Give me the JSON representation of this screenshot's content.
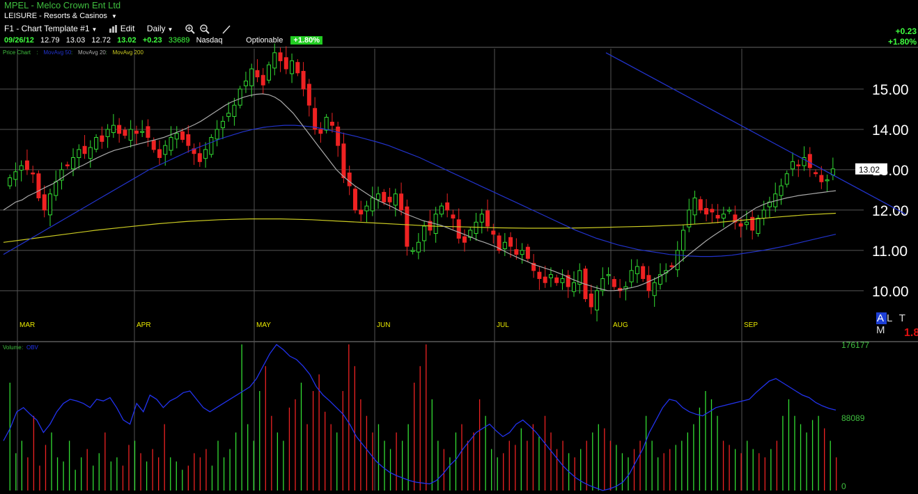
{
  "header": {
    "symbol": "MPEL",
    "company": "Melco Crown Ent Ltd",
    "sector": "LEISURE - Resorts & Casinos",
    "template_label": "F1 - Chart Template #1",
    "edit_label": "Edit",
    "period_label": "Daily",
    "quote": {
      "date": "09/26/12",
      "open": "12.79",
      "high": "13.03",
      "low": "12.72",
      "close": "13.02",
      "change": "+0.23",
      "volume": "33689",
      "exchange": "Nasdaq",
      "optionable": "Optionable",
      "pct": "+1.80%"
    },
    "right_change": "+0.23",
    "right_pct": "+1.80%"
  },
  "legend": {
    "price": "Price Chart",
    "ma50": "MovAvg 50",
    "ma20": "MovAvg 20",
    "ma200": "MovAvg 200",
    "volume": "Volume",
    "obv": "OBV"
  },
  "colors": {
    "up": "#33dd33",
    "down": "#ee2222",
    "ma50": "#2233cc",
    "ma20": "#aaaaaa",
    "ma200": "#cccc22",
    "obv": "#2233ee",
    "grid": "#555555"
  },
  "corner": {
    "altm": "A L T M",
    "altm_a": "A",
    "altm_rest": "L T M",
    "red_text": "1.8"
  },
  "last_price_tag": "13.02",
  "chart_data": {
    "type": "candlestick",
    "price_axis": {
      "ticks": [
        "10.00",
        "11.00",
        "12.00",
        "13.00",
        "14.00",
        "15.00"
      ],
      "ylim": [
        9.1,
        16.0
      ]
    },
    "months": [
      "MAR",
      "APR",
      "MAY",
      "JUN",
      "JUL",
      "AUG",
      "SEP"
    ],
    "volume_axis": {
      "ticks": [
        "0",
        "88089",
        "176177"
      ],
      "ylim": [
        0,
        176177
      ]
    },
    "closes": [
      12.8,
      12.95,
      13.1,
      13.0,
      12.9,
      12.3,
      12.0,
      12.4,
      12.7,
      13.0,
      13.1,
      13.3,
      13.5,
      13.4,
      13.55,
      13.8,
      13.7,
      14.0,
      14.1,
      13.9,
      13.85,
      14.0,
      13.9,
      13.95,
      13.8,
      13.5,
      13.3,
      13.6,
      13.8,
      13.9,
      13.75,
      13.6,
      13.4,
      13.2,
      13.5,
      13.8,
      14.0,
      14.2,
      14.4,
      14.6,
      15.0,
      15.2,
      15.5,
      15.3,
      15.1,
      15.6,
      15.9,
      15.7,
      15.5,
      15.7,
      15.4,
      15.0,
      14.6,
      14.0,
      13.9,
      14.3,
      14.1,
      13.6,
      12.8,
      12.6,
      12.0,
      11.9,
      12.1,
      12.3,
      12.4,
      12.2,
      12.2,
      12.4,
      12.0,
      11.1,
      11.0,
      11.2,
      11.6,
      11.5,
      11.9,
      12.1,
      12.0,
      11.8,
      11.3,
      11.2,
      11.5,
      11.7,
      11.9,
      11.6,
      11.4,
      11.0,
      11.2,
      11.1,
      10.9,
      11.0,
      10.8,
      10.5,
      10.3,
      10.2,
      10.4,
      10.2,
      10.3,
      10.1,
      10.2,
      10.5,
      9.8,
      9.6,
      10.0,
      10.3,
      10.4,
      10.1,
      10.0,
      10.1,
      10.5,
      10.6,
      10.3,
      10.0,
      10.2,
      10.4,
      10.5,
      10.6,
      11.0,
      11.5,
      12.0,
      12.3,
      12.0,
      11.9,
      11.95,
      11.8,
      11.9,
      12.0,
      11.7,
      11.6,
      11.7,
      11.5,
      11.8,
      12.0,
      12.2,
      12.4,
      12.6,
      12.9,
      13.2,
      13.1,
      13.3,
      13.05,
      12.9,
      12.7,
      12.75,
      13.02
    ],
    "ma20": [
      12.0,
      12.1,
      12.2,
      12.25,
      12.35,
      12.42,
      12.5,
      12.58,
      12.65,
      12.75,
      12.85,
      12.95,
      13.05,
      13.12,
      13.2,
      13.28,
      13.35,
      13.42,
      13.48,
      13.52,
      13.56,
      13.6,
      13.64,
      13.68,
      13.72,
      13.76,
      13.8,
      13.86,
      13.92,
      13.98,
      14.05,
      14.12,
      14.2,
      14.3,
      14.4,
      14.5,
      14.6,
      14.68,
      14.74,
      14.8,
      14.84,
      14.87,
      14.88,
      14.86,
      14.8,
      14.7,
      14.55,
      14.4,
      14.2,
      14.0,
      13.8,
      13.6,
      13.4,
      13.2,
      13.0,
      12.85,
      12.72,
      12.6,
      12.5,
      12.4,
      12.3,
      12.22,
      12.15,
      12.08,
      12.0,
      11.92,
      11.86,
      11.8,
      11.74,
      11.7,
      11.66,
      11.62,
      11.56,
      11.5,
      11.44,
      11.38,
      11.32,
      11.25,
      11.2,
      11.14,
      11.08,
      11.0,
      10.92,
      10.85,
      10.78,
      10.72,
      10.65,
      10.6,
      10.55,
      10.5,
      10.44,
      10.38,
      10.3,
      10.24,
      10.18,
      10.13,
      10.08,
      10.04,
      10.0,
      10.0,
      10.02,
      10.05,
      10.08,
      10.12,
      10.18,
      10.25,
      10.32,
      10.4,
      10.5,
      10.62,
      10.75,
      10.88,
      11.0,
      11.12,
      11.24,
      11.35,
      11.45,
      11.55,
      11.65,
      11.75,
      11.85,
      11.95,
      12.05,
      12.12,
      12.18,
      12.22,
      12.26,
      12.3,
      12.33,
      12.36,
      12.38,
      12.4,
      12.42,
      12.44,
      12.46,
      12.48
    ],
    "ma50": [
      10.9,
      11.05,
      11.2,
      11.35,
      11.5,
      11.65,
      11.8,
      11.95,
      12.1,
      12.25,
      12.4,
      12.55,
      12.7,
      12.85,
      13.0,
      13.12,
      13.24,
      13.36,
      13.48,
      13.58,
      13.68,
      13.78,
      13.86,
      13.94,
      14.0,
      14.05,
      14.08,
      14.1,
      14.1,
      14.08,
      14.05,
      14.0,
      13.94,
      13.88,
      13.82,
      13.75,
      13.68,
      13.6,
      13.5,
      13.4,
      13.3,
      13.18,
      13.06,
      12.94,
      12.82,
      12.7,
      12.58,
      12.46,
      12.34,
      12.22,
      12.1,
      11.98,
      11.86,
      11.74,
      11.62,
      11.5,
      11.4,
      11.3,
      11.22,
      11.14,
      11.08,
      11.02,
      10.98,
      10.94,
      10.9,
      10.88,
      10.86,
      10.85,
      10.85,
      10.86,
      10.88,
      10.92,
      10.96,
      11.0,
      11.05,
      11.1,
      11.16,
      11.22,
      11.28,
      11.34,
      11.4
    ],
    "ma200": [
      11.2,
      11.3,
      11.4,
      11.5,
      11.58,
      11.66,
      11.72,
      11.76,
      11.78,
      11.78,
      11.76,
      11.72,
      11.68,
      11.64,
      11.6,
      11.58,
      11.56,
      11.55,
      11.55,
      11.56,
      11.58,
      11.6,
      11.63,
      11.68,
      11.75,
      11.82,
      11.88,
      11.92
    ],
    "trendline": {
      "from_price": 15.9,
      "to_price": 11.9
    },
    "volume_bars": [
      130000,
      45000,
      60000,
      40000,
      90000,
      30000,
      55000,
      70000,
      40000,
      35000,
      60000,
      25000,
      40000,
      50000,
      30000,
      45000,
      70000,
      35000,
      40000,
      30000,
      55000,
      60000,
      45000,
      35000,
      50000,
      40000,
      80000,
      40000,
      35000,
      25000,
      30000,
      45000,
      40000,
      50000,
      30000,
      60000,
      40000,
      50000,
      70000,
      176177,
      80000,
      60000,
      120000,
      150000,
      90000,
      70000,
      60000,
      100000,
      110000,
      130000,
      80000,
      120000,
      140000,
      95000,
      80000,
      70000,
      120000,
      176177,
      150000,
      110000,
      90000,
      70000,
      80000,
      60000,
      50000,
      70000,
      60000,
      80000,
      130000,
      150000,
      176177,
      110000,
      60000,
      50000,
      40000,
      70000,
      80000,
      60000,
      70000,
      110000,
      90000,
      50000,
      40000,
      45000,
      60000,
      55000,
      75000,
      60000,
      80000,
      65000,
      90000,
      70000,
      50000,
      60000,
      45000,
      40000,
      50000,
      60000,
      70000,
      80000,
      75000,
      60000,
      55000,
      45000,
      40000,
      50000,
      60000,
      90000,
      60000,
      40000,
      45000,
      50000,
      55000,
      60000,
      70000,
      80000,
      100000,
      120000,
      110000,
      90000,
      60000,
      55000,
      50000,
      45000,
      60000,
      50000,
      45000,
      40000,
      50000,
      60000,
      90000,
      110000,
      90000,
      80000,
      70000,
      85000,
      90000,
      75000,
      60000,
      40000
    ],
    "obv": [
      60000,
      75000,
      95000,
      100000,
      92000,
      85000,
      70000,
      80000,
      95000,
      105000,
      110000,
      108000,
      105000,
      100000,
      110000,
      108000,
      112000,
      100000,
      85000,
      80000,
      105000,
      95000,
      115000,
      110000,
      100000,
      108000,
      112000,
      118000,
      120000,
      110000,
      100000,
      95000,
      100000,
      105000,
      110000,
      115000,
      120000,
      125000,
      135000,
      150000,
      165000,
      176000,
      170000,
      162000,
      158000,
      150000,
      140000,
      125000,
      115000,
      108000,
      100000,
      92000,
      80000,
      65000,
      55000,
      45000,
      35000,
      28000,
      22000,
      18000,
      15000,
      12000,
      10000,
      9000,
      8000,
      12000,
      20000,
      30000,
      38000,
      50000,
      60000,
      70000,
      75000,
      80000,
      72000,
      65000,
      70000,
      80000,
      85000,
      78000,
      70000,
      60000,
      50000,
      40000,
      30000,
      22000,
      15000,
      10000,
      6000,
      3000,
      0,
      2000,
      5000,
      10000,
      20000,
      35000,
      50000,
      70000,
      85000,
      100000,
      110000,
      108000,
      100000,
      95000,
      92000,
      90000,
      95000,
      100000,
      102000,
      104000,
      106000,
      108000,
      110000,
      118000,
      125000,
      132000,
      135000,
      130000,
      125000,
      120000,
      115000,
      112000,
      106000,
      102000,
      99000,
      97000
    ]
  }
}
